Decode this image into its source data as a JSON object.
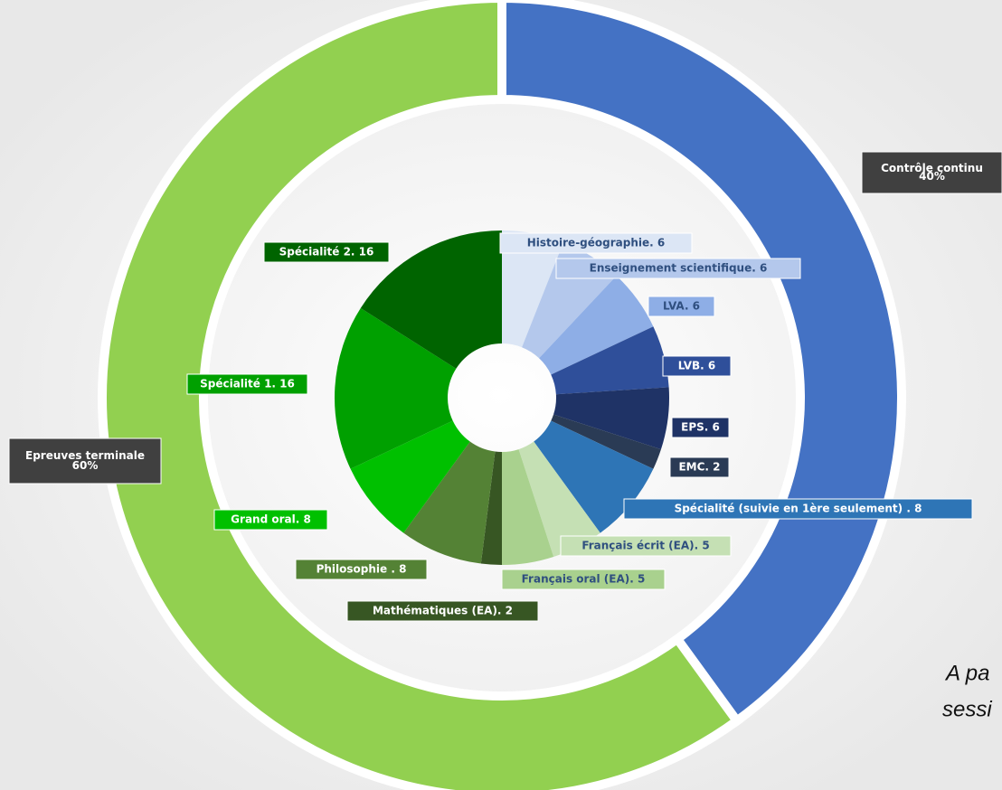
{
  "chart_data": {
    "type": "nested-donut",
    "outer": {
      "categories": [
        "Contrôle continu",
        "Epreuves terminale"
      ],
      "values": [
        40,
        60
      ],
      "value_labels": [
        "40%",
        "60%"
      ],
      "colors": [
        "#4472c4",
        "#92d050"
      ]
    },
    "inner": {
      "categories": [
        "Histoire-géographie. 6",
        "Enseignement scientifique. 6",
        "LVA. 6",
        "LVB. 6",
        "EPS. 6",
        "EMC. 2",
        "Spécialité (suivie en 1ère seulement) . 8",
        "Français écrit (EA). 5",
        "Français oral (EA). 5",
        "Mathématiques (EA). 2",
        "Philosophie . 8",
        "Grand oral. 8",
        "Spécialité 1. 16",
        "Spécialité 2. 16"
      ],
      "values": [
        6,
        6,
        6,
        6,
        6,
        2,
        8,
        5,
        5,
        2,
        8,
        8,
        16,
        16
      ],
      "colors": [
        "#dce6f5",
        "#b4c8ec",
        "#8eaee6",
        "#2f4f9a",
        "#1f3366",
        "#2a3b55",
        "#2e75b6",
        "#c5e0b4",
        "#a9d18e",
        "#375623",
        "#548235",
        "#00c000",
        "#00a000",
        "#006400"
      ]
    },
    "annotations": [
      "A pa",
      "sessi"
    ]
  }
}
